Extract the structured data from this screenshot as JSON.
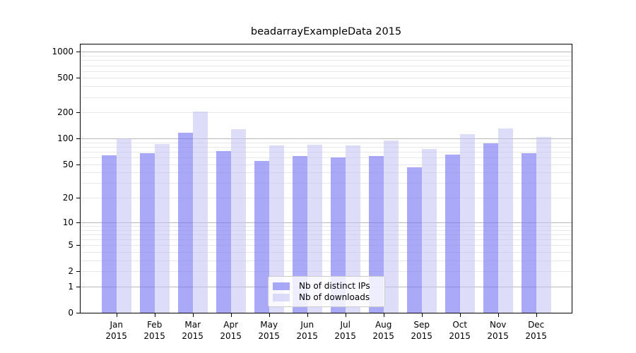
{
  "chart_data": {
    "type": "bar",
    "title": "beadarrayExampleData 2015",
    "categories": [
      "Jan 2015",
      "Feb 2015",
      "Mar 2015",
      "Apr 2015",
      "May 2015",
      "Jun 2015",
      "Jul 2015",
      "Aug 2015",
      "Sep 2015",
      "Oct 2015",
      "Nov 2015",
      "Dec 2015"
    ],
    "series": [
      {
        "name": "Nb of distinct IPs",
        "color": "rgba(120,120,242,0.64)",
        "values": [
          64,
          67,
          116,
          71,
          55,
          62,
          60,
          62,
          46,
          65,
          88,
          67
        ]
      },
      {
        "name": "Nb of downloads",
        "color": "rgba(196,196,244,0.58)",
        "values": [
          100,
          87,
          205,
          128,
          83,
          84,
          83,
          94,
          75,
          113,
          130,
          104
        ]
      }
    ],
    "xlabel": "",
    "ylabel": "",
    "y_scale": "log10(1+y)",
    "y_ticks": [
      1000,
      500,
      200,
      100,
      50,
      20,
      10,
      5,
      2,
      1,
      0
    ],
    "ylim": [
      0,
      1215
    ],
    "grid": {
      "major_values": [
        1,
        10,
        100,
        1000
      ],
      "major_color": "#b8b8b8",
      "minor_color": "#e8e8e8"
    },
    "legend": {
      "location": "lower-center-inside"
    },
    "axis_color": "#000000",
    "text_color": "#000000"
  }
}
